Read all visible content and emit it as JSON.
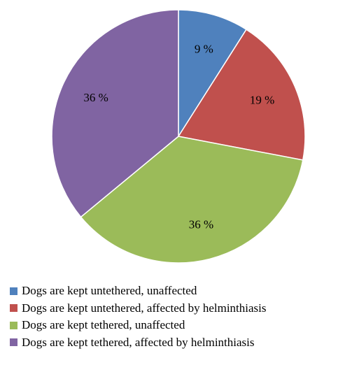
{
  "chart_data": {
    "type": "pie",
    "start_angle_deg": 0,
    "direction": "clockwise",
    "legend_position": "bottom",
    "slices": [
      {
        "name": "Dogs are kept untethered, unaffected",
        "value": 9,
        "label": "9 %",
        "color": "#4F81BD"
      },
      {
        "name": "Dogs are kept untethered, affected by helminthiasis",
        "value": 19,
        "label": "19 %",
        "color": "#C0504D"
      },
      {
        "name": "Dogs are kept tethered, unaffected",
        "value": 36,
        "label": "36 %",
        "color": "#9BBB59"
      },
      {
        "name": "Dogs are kept tethered, affected by helminthiasis",
        "value": 36,
        "label": "36 %",
        "color": "#8064A2"
      }
    ]
  }
}
